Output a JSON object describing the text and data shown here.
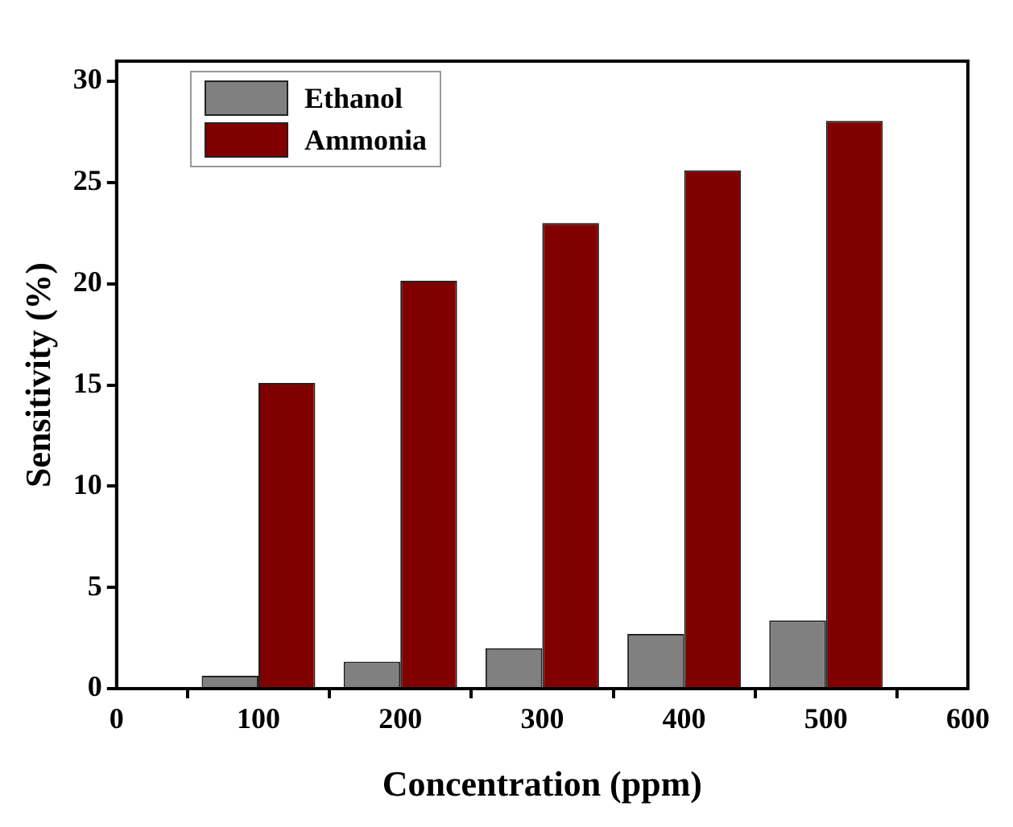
{
  "chart_data": {
    "type": "bar",
    "xlabel": "Concentration (ppm)",
    "ylabel": "Sensitivity (%)",
    "x": [
      100,
      200,
      300,
      400,
      500
    ],
    "series": [
      {
        "name": "Ethanol",
        "color": "#808080",
        "values": [
          0.64,
          1.33,
          2.0,
          2.7,
          3.37
        ]
      },
      {
        "name": "Ammonia",
        "color": "#800000",
        "values": [
          15.1,
          20.15,
          23.0,
          25.6,
          28.05
        ]
      }
    ],
    "xlim": [
      0,
      600
    ],
    "xticks": [
      0,
      100,
      200,
      300,
      400,
      500,
      600
    ],
    "ylim": [
      0,
      31
    ],
    "yticks": [
      0,
      5,
      10,
      15,
      20,
      25,
      30
    ],
    "grid": false,
    "legend": "top left"
  }
}
